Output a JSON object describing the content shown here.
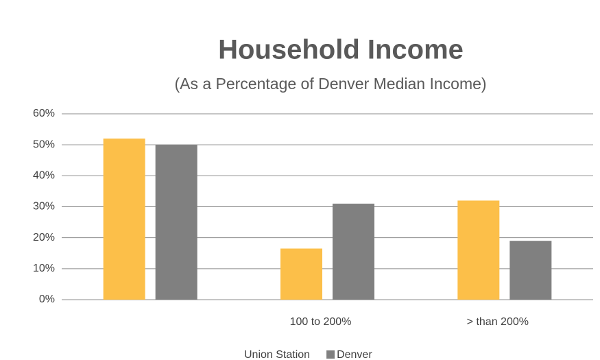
{
  "chart_data": {
    "type": "bar",
    "title": "Household Income",
    "subtitle": "(As a Percentage of Denver Median Income)",
    "categories": [
      null,
      "100 to 200%",
      "> than 200%"
    ],
    "series": [
      {
        "name": "Union Station",
        "color": "#fcbf49",
        "values": [
          52,
          16.5,
          32
        ]
      },
      {
        "name": "Denver",
        "color": "#808080",
        "values": [
          50,
          31,
          19
        ]
      }
    ],
    "ylim": [
      0,
      60
    ],
    "yticks": [
      {
        "value": 0,
        "label": "0%"
      },
      {
        "value": 10,
        "label": "10%"
      },
      {
        "value": 20,
        "label": "20%"
      },
      {
        "value": 30,
        "label": "30%"
      },
      {
        "value": 40,
        "label": "40%"
      },
      {
        "value": 50,
        "label": "50%"
      },
      {
        "value": 60,
        "label": "60%"
      }
    ],
    "grid": true,
    "legend": "bottom"
  }
}
